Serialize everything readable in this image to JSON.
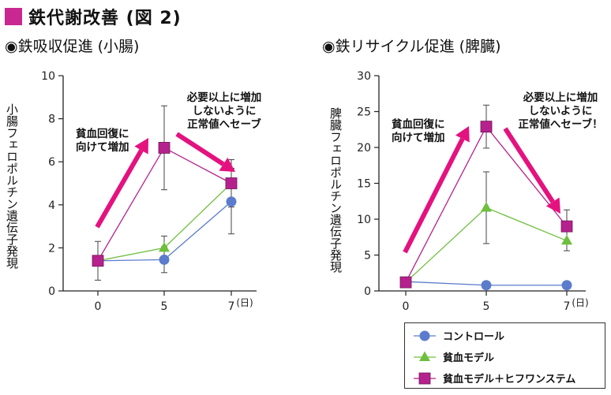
{
  "header": {
    "title": "鉄代謝改善 (図 2)",
    "accent_color": "#c8288f"
  },
  "panels": [
    {
      "subtitle": "◉鉄吸収促進 (小腸)",
      "ylabel": "小腸フェロポルチン遺伝子発現"
    },
    {
      "subtitle": "◉鉄リサイクル促進 (脾臓)",
      "ylabel": "脾臓フェロポルチン遺伝子発現"
    }
  ],
  "legend_items": [
    {
      "label": "コントロール",
      "marker": "circle",
      "color": "#5b7ccc"
    },
    {
      "label": "貧血モデル",
      "marker": "triangle",
      "color": "#6fbf3e"
    },
    {
      "label": "貧血モデル＋ヒフワンステム",
      "marker": "square",
      "color": "#b6228d"
    }
  ],
  "chart_data": [
    {
      "type": "line",
      "title": "◉鉄吸収促進 (小腸)",
      "xlabel": "(日)",
      "ylabel": "小腸フェロポルチン遺伝子発現",
      "x": [
        0,
        5,
        7
      ],
      "x_ticks": [
        "0",
        "5",
        "7"
      ],
      "ylim": [
        0,
        10
      ],
      "y_ticks": [
        0,
        2,
        4,
        6,
        8,
        10
      ],
      "series": [
        {
          "name": "コントロール",
          "values": [
            1.4,
            1.45,
            4.15
          ],
          "errors": [
            null,
            0.6,
            1.5
          ],
          "marker": "circle",
          "color": "#5b7ccc"
        },
        {
          "name": "貧血モデル",
          "values": [
            1.4,
            2.0,
            5.0
          ],
          "errors": [
            null,
            0.55,
            1.1
          ],
          "marker": "triangle",
          "color": "#6fbf3e"
        },
        {
          "name": "貧血モデル＋ヒフワンステム",
          "values": [
            1.4,
            6.65,
            5.0
          ],
          "errors": [
            0.9,
            1.95,
            0.7
          ],
          "marker": "square",
          "color": "#b6228d"
        }
      ],
      "annotations": [
        {
          "text": [
            "貧血回復に",
            "向けて増加"
          ]
        },
        {
          "text": [
            "必要以上に増加",
            "しないように",
            "正常値へセーブ"
          ]
        }
      ]
    },
    {
      "type": "line",
      "title": "◉鉄リサイクル促進 (脾臓)",
      "xlabel": "(日)",
      "ylabel": "脾臓フェロポルチン遺伝子発現",
      "x": [
        0,
        5,
        7
      ],
      "x_ticks": [
        "0",
        "5",
        "7"
      ],
      "ylim": [
        0,
        30
      ],
      "y_ticks": [
        0,
        5,
        10,
        15,
        20,
        25,
        30
      ],
      "series": [
        {
          "name": "コントロール",
          "values": [
            1.3,
            0.8,
            0.8
          ],
          "errors": [
            null,
            null,
            null
          ],
          "marker": "circle",
          "color": "#5b7ccc"
        },
        {
          "name": "貧血モデル",
          "values": [
            1.2,
            11.6,
            7.0
          ],
          "errors": [
            null,
            5.0,
            1.4
          ],
          "marker": "triangle",
          "color": "#6fbf3e"
        },
        {
          "name": "貧血モデル＋ヒフワンステム",
          "values": [
            1.2,
            22.9,
            9.0
          ],
          "errors": [
            null,
            3.0,
            2.3
          ],
          "marker": "square",
          "color": "#b6228d"
        }
      ],
      "annotations": [
        {
          "text": [
            "貧血回復に",
            "向けて増加"
          ]
        },
        {
          "text": [
            "必要以上に増加",
            "しないように",
            "正常値へセーブ！"
          ]
        }
      ]
    }
  ]
}
